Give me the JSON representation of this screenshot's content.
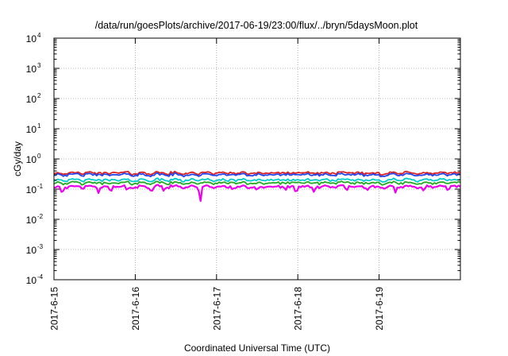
{
  "chart_data": {
    "type": "line",
    "title": "/data/run/goesPlots/archive/2017-06-19/23:00/flux/../bryn/5daysMoon.plot",
    "xlabel": "Coordinated Universal Time (UTC)",
    "ylabel": "cGy/day",
    "y_scale": "log",
    "ylim": [
      0.0001,
      10000
    ],
    "y_ticks": [
      {
        "base": "10",
        "exp": "-4",
        "value": 0.0001
      },
      {
        "base": "10",
        "exp": "-3",
        "value": 0.001
      },
      {
        "base": "10",
        "exp": "-2",
        "value": 0.01
      },
      {
        "base": "10",
        "exp": "-1",
        "value": 0.1
      },
      {
        "base": "10",
        "exp": "0",
        "value": 1
      },
      {
        "base": "10",
        "exp": "1",
        "value": 10
      },
      {
        "base": "10",
        "exp": "2",
        "value": 100
      },
      {
        "base": "10",
        "exp": "3",
        "value": 1000
      },
      {
        "base": "10",
        "exp": "4",
        "value": 10000
      }
    ],
    "x_ticks": [
      "2017-6-15",
      "2017-6-16",
      "2017-6-17",
      "2017-6-18",
      "2017-6-19"
    ],
    "xlim": [
      "2017-06-15",
      "2017-06-20"
    ],
    "grid": true,
    "legend": "none",
    "series": [
      {
        "color": "#ee00ee",
        "level": 0.12,
        "x_start": "2017-06-15",
        "x_end": "2017-06-20",
        "dips": [
          {
            "x": "2017-06-15T02:24",
            "y": 0.065
          },
          {
            "x": "2017-06-15T13:12",
            "y": 0.07
          },
          {
            "x": "2017-06-15T16:48",
            "y": 0.075
          },
          {
            "x": "2017-06-15T21:36",
            "y": 0.08
          },
          {
            "x": "2017-06-16T04:48",
            "y": 0.075
          },
          {
            "x": "2017-06-16T08:24",
            "y": 0.085
          },
          {
            "x": "2017-06-16T19:12",
            "y": 0.028
          },
          {
            "x": "2017-06-17T04:48",
            "y": 0.09
          },
          {
            "x": "2017-06-17T12:00",
            "y": 0.085
          },
          {
            "x": "2017-06-17T20:24",
            "y": 0.09
          },
          {
            "x": "2017-06-17T23:30",
            "y": 0.06
          },
          {
            "x": "2017-06-18T04:48",
            "y": 0.075
          },
          {
            "x": "2017-06-18T14:24",
            "y": 0.08
          },
          {
            "x": "2017-06-18T20:24",
            "y": 0.085
          },
          {
            "x": "2017-06-19T04:48",
            "y": 0.075
          },
          {
            "x": "2017-06-19T13:12",
            "y": 0.08
          },
          {
            "x": "2017-06-19T20:24",
            "y": 0.085
          }
        ]
      },
      {
        "color": "#22aa22",
        "level": 0.16,
        "x_start": "2017-06-15",
        "x_end": "2017-06-20"
      },
      {
        "color": "#00cccc",
        "level": 0.2,
        "x_start": "2017-06-15",
        "x_end": "2017-06-20"
      },
      {
        "color": "#dd2222",
        "level": 0.34,
        "x_start": "2017-06-15",
        "x_end": "2017-06-20"
      },
      {
        "color": "#2244ee",
        "level": 0.3,
        "x_start": "2017-06-15",
        "x_end": "2017-06-20"
      }
    ]
  }
}
